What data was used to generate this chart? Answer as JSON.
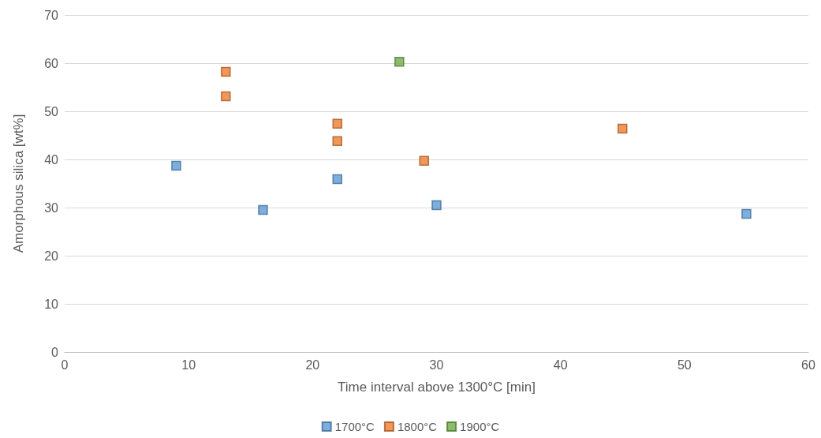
{
  "chart_data": {
    "type": "scatter",
    "xlabel": "Time interval above 1300°C [min]",
    "ylabel": "Amorphous silica [wt%]",
    "xlim": [
      0,
      60
    ],
    "xticks": [
      0,
      10,
      20,
      30,
      40,
      50,
      60
    ],
    "ylim": [
      0,
      70
    ],
    "yticks": [
      0,
      10,
      20,
      30,
      40,
      50,
      60,
      70
    ],
    "grid": "y",
    "legend": "bottom",
    "marker": "square",
    "series": [
      {
        "name": "1700°C",
        "color": "#5b9bd5",
        "x": [
          9,
          16,
          22,
          30,
          55
        ],
        "values": [
          38.7,
          29.5,
          35.9,
          30.5,
          28.7
        ]
      },
      {
        "name": "1800°C",
        "color": "#ed7d31",
        "x": [
          13,
          13,
          22,
          22,
          29,
          45
        ],
        "values": [
          58.2,
          53.1,
          47.4,
          43.8,
          39.7,
          46.4
        ]
      },
      {
        "name": "1900°C",
        "color": "#70ad47",
        "x": [
          27
        ],
        "values": [
          60.3
        ]
      }
    ]
  }
}
